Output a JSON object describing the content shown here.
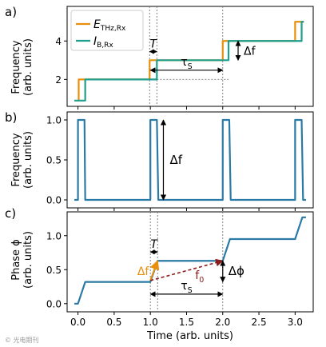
{
  "colors": {
    "orange": "#E8900E",
    "teal": "#1E9E8C",
    "blue": "#2A7AA6",
    "darkred": "#8B1A1A",
    "grid": "#888888"
  },
  "watermark": "© 光电期刊",
  "chart_data": [
    {
      "id": "a",
      "panel_label": "a)",
      "type": "line",
      "ylabel": "Frequency\n(arb. units)",
      "ylim": [
        0.6,
        5.8
      ],
      "xlim": [
        -0.15,
        3.25
      ],
      "yticks": [
        2,
        4
      ],
      "ytick_labels": [
        "2",
        "4"
      ],
      "legend": {
        "placement": "top-left",
        "entries": [
          "E_THz,Rx",
          "I_B,Rx"
        ]
      },
      "series": [
        {
          "name": "E_THz,Rx",
          "color": "orange",
          "x": [
            0.0,
            0.0,
            0.01,
            0.01,
            0.99,
            0.99,
            2.0,
            2.0,
            3.0,
            3.0,
            3.12
          ],
          "y": [
            0.9,
            0.9,
            0.9,
            2.0,
            2.0,
            3.0,
            3.0,
            4.0,
            4.0,
            5.0,
            5.0
          ]
        },
        {
          "name": "I_B,Rx",
          "color": "teal",
          "x": [
            -0.05,
            0.1,
            0.1,
            1.09,
            1.09,
            2.08,
            2.08,
            3.09,
            3.09,
            3.12
          ],
          "y": [
            0.9,
            0.9,
            2.0,
            2.0,
            3.0,
            3.0,
            4.0,
            4.0,
            5.0,
            5.0
          ]
        }
      ],
      "annotations": {
        "T_label": "T",
        "df_label": "Δf",
        "tau_label": "τ",
        "tau_sub": "S"
      }
    },
    {
      "id": "b",
      "panel_label": "b)",
      "type": "line",
      "ylabel": "Frequency\n(arb. units)",
      "ylim": [
        -0.1,
        1.1
      ],
      "xlim": [
        -0.15,
        3.25
      ],
      "yticks": [
        0.0,
        0.5,
        1.0
      ],
      "ytick_labels": [
        "0.0",
        "0.5",
        "1.0"
      ],
      "series": [
        {
          "name": "",
          "color": "blue",
          "x": [
            -0.05,
            0.0,
            0.0,
            0.09,
            0.1,
            1.0,
            1.0,
            1.09,
            1.11,
            2.0,
            2.0,
            2.09,
            2.11,
            3.0,
            3.0,
            3.09,
            3.11,
            3.15
          ],
          "y": [
            0.0,
            0.0,
            1.0,
            1.0,
            0.0,
            0.0,
            1.0,
            1.0,
            0.0,
            0.0,
            1.0,
            1.0,
            0.0,
            0.0,
            1.0,
            1.0,
            0.0,
            0.0
          ]
        }
      ],
      "annotations": {
        "df_label": "Δf"
      }
    },
    {
      "id": "c",
      "panel_label": "c)",
      "type": "line",
      "ylabel": "Phase ϕ\n(arb. units)",
      "ylim": [
        -0.12,
        1.35
      ],
      "xlim": [
        -0.15,
        3.25
      ],
      "yticks": [
        0.0,
        0.5,
        1.0
      ],
      "ytick_labels": [
        "0.0",
        "0.5",
        "1.0"
      ],
      "xticks": [
        0.0,
        0.5,
        1.0,
        1.5,
        2.0,
        2.5,
        3.0
      ],
      "xtick_labels": [
        "0.0",
        "0.5",
        "1.0",
        "1.5",
        "2.0",
        "2.5",
        "3.0"
      ],
      "xlabel": "Time (arb. units)",
      "series": [
        {
          "name": "",
          "color": "blue",
          "x": [
            -0.05,
            0.0,
            0.1,
            1.0,
            1.1,
            2.0,
            2.1,
            3.0,
            3.1,
            3.15
          ],
          "y": [
            0.0,
            0.0,
            0.32,
            0.32,
            0.63,
            0.63,
            0.95,
            0.95,
            1.27,
            1.27
          ]
        }
      ],
      "annotations": {
        "T_label": "T",
        "df_label": "Δf",
        "f0_label": "f",
        "f0_sub": "0",
        "dphi_label": "Δϕ",
        "tau_label": "τ",
        "tau_sub": "S"
      }
    }
  ]
}
